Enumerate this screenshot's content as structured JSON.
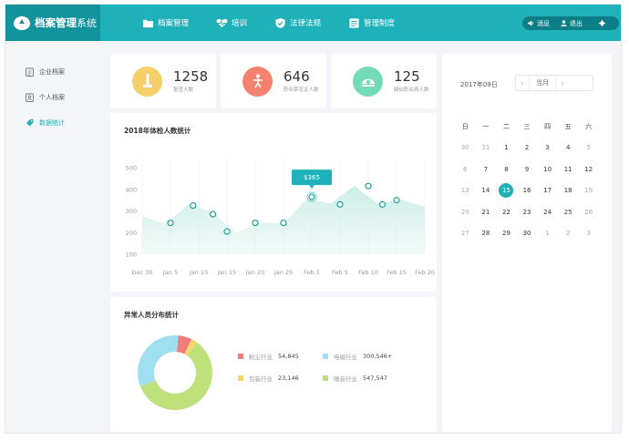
{
  "app": {
    "title_bold": "档案管理",
    "title_light": "系统"
  },
  "nav": [
    {
      "label": "档案管理",
      "icon": "folder-icon"
    },
    {
      "label": "培训",
      "icon": "heartbeat-icon"
    },
    {
      "label": "法律法规",
      "icon": "shield-icon"
    },
    {
      "label": "管理制度",
      "icon": "document-list-icon"
    }
  ],
  "header_actions": {
    "messages": "消息",
    "logout": "退出"
  },
  "sidebar": {
    "items": [
      {
        "label": "企业档案",
        "icon": "clipboard-icon"
      },
      {
        "label": "个人档案",
        "icon": "badge-icon"
      },
      {
        "label": "数据统计",
        "icon": "tag-icon",
        "active": true
      }
    ]
  },
  "stats": [
    {
      "value": "1258",
      "label": "复查人数",
      "color": "#f5cf67"
    },
    {
      "value": "646",
      "label": "职业禁忌证人数",
      "color": "#f5826f"
    },
    {
      "value": "125",
      "label": "疑似职业病人数",
      "color": "#74dbb9"
    }
  ],
  "line_chart": {
    "title": "2018年体检人数统计",
    "tooltip": "$365",
    "chart_data": {
      "type": "area",
      "title": "2018年体检人数统计",
      "x": [
        "Dec 30",
        "Jan 5",
        "Jan 10",
        "Jan 15",
        "Jan 20",
        "Jan 25",
        "Feb 1",
        "Feb 5",
        "Feb 10",
        "Feb 15",
        "Feb 20"
      ],
      "ylim": [
        100,
        500
      ],
      "yticks": [
        100,
        200,
        300,
        400,
        500
      ],
      "area_values": [
        275,
        240,
        335,
        290,
        200,
        245,
        245,
        355,
        335,
        415,
        335,
        350,
        320
      ],
      "points": [
        {
          "x": "Jan 5",
          "y": 245
        },
        {
          "x": "Jan 10",
          "y": 325
        },
        {
          "x": "Jan 10",
          "y": 285
        },
        {
          "x": "Jan 15",
          "y": 205
        },
        {
          "x": "Jan 20",
          "y": 245
        },
        {
          "x": "Jan 25",
          "y": 245
        },
        {
          "x": "Feb 1",
          "y": 365
        },
        {
          "x": "Feb 5",
          "y": 330
        },
        {
          "x": "Feb 10",
          "y": 415
        },
        {
          "x": "Feb 10",
          "y": 330
        },
        {
          "x": "Feb 15",
          "y": 350
        }
      ],
      "highlight": {
        "x": "Feb 1",
        "y": 365,
        "label": "$365"
      },
      "colors": {
        "fill": "#cdeee8",
        "point": "#1a9e9a",
        "tooltip": "#1fb1b9"
      }
    }
  },
  "donut_chart": {
    "title": "异常人员分布统计",
    "chart_data": {
      "type": "pie",
      "title": "异常人员分布统计",
      "slices": [
        {
          "name": "粉尘行业",
          "value": 54845,
          "display": "54,845",
          "color": "#f07c7c"
        },
        {
          "name": "包装行业",
          "value": 23146,
          "display": "23,146",
          "color": "#fcd36b"
        },
        {
          "name": "噪音行业",
          "value": 547547,
          "display": "547,547",
          "color": "#bde27c"
        },
        {
          "name": "电磁行业",
          "value": 300546,
          "display": "300,546+",
          "color": "#9fe0f0"
        }
      ]
    }
  },
  "calendar": {
    "month_label": "2017年09日",
    "current_label": "当月",
    "weekdays": [
      "日",
      "一",
      "二",
      "三",
      "四",
      "五",
      "六"
    ],
    "weeks": [
      [
        {
          "d": "30",
          "m": 1
        },
        {
          "d": "31",
          "m": 1
        },
        {
          "d": "1"
        },
        {
          "d": "2"
        },
        {
          "d": "3"
        },
        {
          "d": "4"
        },
        {
          "d": "5",
          "m": 1
        }
      ],
      [
        {
          "d": "6",
          "m": 1
        },
        {
          "d": "7"
        },
        {
          "d": "8"
        },
        {
          "d": "9"
        },
        {
          "d": "10"
        },
        {
          "d": "11"
        },
        {
          "d": "12"
        }
      ],
      [
        {
          "d": "13",
          "m": 1
        },
        {
          "d": "14"
        },
        {
          "d": "15",
          "today": 1
        },
        {
          "d": "16"
        },
        {
          "d": "17"
        },
        {
          "d": "18"
        },
        {
          "d": "19",
          "m": 1
        }
      ],
      [
        {
          "d": "20",
          "m": 1
        },
        {
          "d": "21"
        },
        {
          "d": "22"
        },
        {
          "d": "23"
        },
        {
          "d": "24"
        },
        {
          "d": "25"
        },
        {
          "d": "26",
          "m": 1
        }
      ],
      [
        {
          "d": "27",
          "m": 1
        },
        {
          "d": "28"
        },
        {
          "d": "29"
        },
        {
          "d": "30"
        },
        {
          "d": "1",
          "m": 1
        },
        {
          "d": "2",
          "m": 1
        },
        {
          "d": "3",
          "m": 1
        }
      ]
    ]
  }
}
